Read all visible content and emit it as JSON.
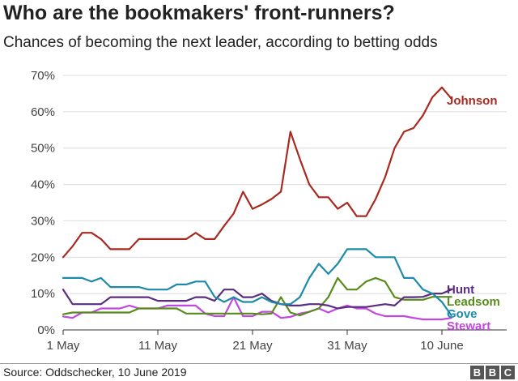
{
  "header": {
    "title": "Who are the bookmakers' front-runners?",
    "subtitle": "Chances of becoming the next leader, according to betting odds"
  },
  "footer": {
    "source": "Source: Oddschecker, 10 June 2019",
    "logo_letters": [
      "B",
      "B",
      "C"
    ]
  },
  "chart_data": {
    "type": "line",
    "title": "Who are the bookmakers' front-runners?",
    "subtitle": "Chances of becoming the next leader, according to betting odds",
    "xlabel": "",
    "ylabel": "",
    "x_range": [
      "2019-05-01",
      "2019-06-10"
    ],
    "x_ticks": [
      {
        "date": "2019-05-01",
        "label": "1 May"
      },
      {
        "date": "2019-05-11",
        "label": "11 May"
      },
      {
        "date": "2019-05-21",
        "label": "21 May"
      },
      {
        "date": "2019-05-31",
        "label": "31 May"
      },
      {
        "date": "2019-06-10",
        "label": "10 June"
      }
    ],
    "y_ticks": [
      0,
      10,
      20,
      30,
      40,
      50,
      60,
      70
    ],
    "y_tick_suffix": "%",
    "ylim": [
      0,
      70
    ],
    "grid": true,
    "legend": "direct labels at line ends (right)",
    "series": [
      {
        "name": "Johnson",
        "color": "#a82a1e",
        "points": [
          [
            "2019-05-01",
            20
          ],
          [
            "2019-05-02",
            23
          ],
          [
            "2019-05-03",
            26.7
          ],
          [
            "2019-05-04",
            26.7
          ],
          [
            "2019-05-05",
            25
          ],
          [
            "2019-05-06",
            22.2
          ],
          [
            "2019-05-07",
            22.2
          ],
          [
            "2019-05-08",
            22.2
          ],
          [
            "2019-05-09",
            25
          ],
          [
            "2019-05-10",
            25
          ],
          [
            "2019-05-11",
            25
          ],
          [
            "2019-05-12",
            25
          ],
          [
            "2019-05-13",
            25
          ],
          [
            "2019-05-14",
            25
          ],
          [
            "2019-05-15",
            26.7
          ],
          [
            "2019-05-16",
            25
          ],
          [
            "2019-05-17",
            25
          ],
          [
            "2019-05-18",
            28.6
          ],
          [
            "2019-05-19",
            32
          ],
          [
            "2019-05-20",
            38
          ],
          [
            "2019-05-21",
            33.3
          ],
          [
            "2019-05-22",
            34.5
          ],
          [
            "2019-05-23",
            36
          ],
          [
            "2019-05-24",
            38
          ],
          [
            "2019-05-25",
            54.5
          ],
          [
            "2019-05-26",
            47
          ],
          [
            "2019-05-27",
            40
          ],
          [
            "2019-05-28",
            36.5
          ],
          [
            "2019-05-29",
            36.5
          ],
          [
            "2019-05-30",
            33.3
          ],
          [
            "2019-05-31",
            35
          ],
          [
            "2019-06-01",
            31.3
          ],
          [
            "2019-06-02",
            31.3
          ],
          [
            "2019-06-03",
            36
          ],
          [
            "2019-06-04",
            42
          ],
          [
            "2019-06-05",
            50
          ],
          [
            "2019-06-06",
            54.5
          ],
          [
            "2019-06-07",
            55.5
          ],
          [
            "2019-06-08",
            59
          ],
          [
            "2019-06-09",
            64
          ],
          [
            "2019-06-10",
            66.7
          ],
          [
            "2019-06-11",
            63.6
          ]
        ]
      },
      {
        "name": "Hunt",
        "color": "#5a2d81",
        "points": [
          [
            "2019-05-01",
            11.1
          ],
          [
            "2019-05-02",
            7.1
          ],
          [
            "2019-05-03",
            7.1
          ],
          [
            "2019-05-04",
            7.1
          ],
          [
            "2019-05-05",
            7.1
          ],
          [
            "2019-05-06",
            9
          ],
          [
            "2019-05-07",
            9
          ],
          [
            "2019-05-08",
            9
          ],
          [
            "2019-05-09",
            9
          ],
          [
            "2019-05-10",
            9
          ],
          [
            "2019-05-11",
            8
          ],
          [
            "2019-05-12",
            8
          ],
          [
            "2019-05-13",
            8
          ],
          [
            "2019-05-14",
            8
          ],
          [
            "2019-05-15",
            9
          ],
          [
            "2019-05-16",
            9
          ],
          [
            "2019-05-17",
            8
          ],
          [
            "2019-05-18",
            11.1
          ],
          [
            "2019-05-19",
            11.1
          ],
          [
            "2019-05-20",
            9
          ],
          [
            "2019-05-21",
            9
          ],
          [
            "2019-05-22",
            10
          ],
          [
            "2019-05-23",
            8
          ],
          [
            "2019-05-24",
            7.1
          ],
          [
            "2019-05-25",
            6.7
          ],
          [
            "2019-05-26",
            6.7
          ],
          [
            "2019-05-27",
            7.1
          ],
          [
            "2019-05-28",
            7.1
          ],
          [
            "2019-05-29",
            6.7
          ],
          [
            "2019-05-30",
            5.9
          ],
          [
            "2019-05-31",
            6.3
          ],
          [
            "2019-06-01",
            6.3
          ],
          [
            "2019-06-02",
            6.3
          ],
          [
            "2019-06-03",
            6.7
          ],
          [
            "2019-06-04",
            7.1
          ],
          [
            "2019-06-05",
            6.7
          ],
          [
            "2019-06-06",
            9
          ],
          [
            "2019-06-07",
            9
          ],
          [
            "2019-06-08",
            9.1
          ],
          [
            "2019-06-09",
            10
          ],
          [
            "2019-06-10",
            10
          ],
          [
            "2019-06-11",
            11.1
          ]
        ]
      },
      {
        "name": "Leadsom",
        "color": "#588c1a",
        "points": [
          [
            "2019-05-01",
            4.3
          ],
          [
            "2019-05-02",
            4.8
          ],
          [
            "2019-05-03",
            4.8
          ],
          [
            "2019-05-04",
            4.8
          ],
          [
            "2019-05-05",
            4.8
          ],
          [
            "2019-05-06",
            4.8
          ],
          [
            "2019-05-07",
            4.8
          ],
          [
            "2019-05-08",
            4.8
          ],
          [
            "2019-05-09",
            5.9
          ],
          [
            "2019-05-10",
            5.9
          ],
          [
            "2019-05-11",
            5.9
          ],
          [
            "2019-05-12",
            5.9
          ],
          [
            "2019-05-13",
            5.9
          ],
          [
            "2019-05-14",
            4.5
          ],
          [
            "2019-05-15",
            4.5
          ],
          [
            "2019-05-16",
            4.5
          ],
          [
            "2019-05-17",
            4.5
          ],
          [
            "2019-05-18",
            4.5
          ],
          [
            "2019-05-19",
            4.5
          ],
          [
            "2019-05-20",
            4.5
          ],
          [
            "2019-05-21",
            4.5
          ],
          [
            "2019-05-22",
            4.3
          ],
          [
            "2019-05-23",
            4.5
          ],
          [
            "2019-05-24",
            9
          ],
          [
            "2019-05-25",
            4.8
          ],
          [
            "2019-05-26",
            4
          ],
          [
            "2019-05-27",
            5
          ],
          [
            "2019-05-28",
            5.9
          ],
          [
            "2019-05-29",
            9
          ],
          [
            "2019-05-30",
            14.3
          ],
          [
            "2019-05-31",
            11.1
          ],
          [
            "2019-06-01",
            11.1
          ],
          [
            "2019-06-02",
            13.3
          ],
          [
            "2019-06-03",
            14.3
          ],
          [
            "2019-06-04",
            13.3
          ],
          [
            "2019-06-05",
            9
          ],
          [
            "2019-06-06",
            8.3
          ],
          [
            "2019-06-07",
            8.3
          ],
          [
            "2019-06-08",
            8.3
          ],
          [
            "2019-06-09",
            9.1
          ],
          [
            "2019-06-10",
            9.1
          ],
          [
            "2019-06-11",
            9.1
          ]
        ]
      },
      {
        "name": "Gove",
        "color": "#1d8aaa",
        "points": [
          [
            "2019-05-01",
            14.3
          ],
          [
            "2019-05-02",
            14.3
          ],
          [
            "2019-05-03",
            14.3
          ],
          [
            "2019-05-04",
            13.3
          ],
          [
            "2019-05-05",
            14.3
          ],
          [
            "2019-05-06",
            11.8
          ],
          [
            "2019-05-07",
            11.8
          ],
          [
            "2019-05-08",
            11.8
          ],
          [
            "2019-05-09",
            11.8
          ],
          [
            "2019-05-10",
            11.1
          ],
          [
            "2019-05-11",
            11.1
          ],
          [
            "2019-05-12",
            11.1
          ],
          [
            "2019-05-13",
            12.5
          ],
          [
            "2019-05-14",
            12.5
          ],
          [
            "2019-05-15",
            13.3
          ],
          [
            "2019-05-16",
            13.3
          ],
          [
            "2019-05-17",
            9.1
          ],
          [
            "2019-05-18",
            7.7
          ],
          [
            "2019-05-19",
            9
          ],
          [
            "2019-05-20",
            7.7
          ],
          [
            "2019-05-21",
            7.7
          ],
          [
            "2019-05-22",
            9
          ],
          [
            "2019-05-23",
            7.7
          ],
          [
            "2019-05-24",
            7.1
          ],
          [
            "2019-05-25",
            7.1
          ],
          [
            "2019-05-26",
            9
          ],
          [
            "2019-05-27",
            14.3
          ],
          [
            "2019-05-28",
            18.2
          ],
          [
            "2019-05-29",
            15.4
          ],
          [
            "2019-05-30",
            18.2
          ],
          [
            "2019-05-31",
            22.2
          ],
          [
            "2019-06-01",
            22.2
          ],
          [
            "2019-06-02",
            22.2
          ],
          [
            "2019-06-03",
            20
          ],
          [
            "2019-06-04",
            20
          ],
          [
            "2019-06-05",
            20
          ],
          [
            "2019-06-06",
            14.3
          ],
          [
            "2019-06-07",
            14.3
          ],
          [
            "2019-06-08",
            11.1
          ],
          [
            "2019-06-09",
            10
          ],
          [
            "2019-06-10",
            7.7
          ],
          [
            "2019-06-11",
            4
          ]
        ]
      },
      {
        "name": "Stewart",
        "color": "#c147e0",
        "points": [
          [
            "2019-05-01",
            3.7
          ],
          [
            "2019-05-02",
            3.3
          ],
          [
            "2019-05-03",
            4.8
          ],
          [
            "2019-05-04",
            4.8
          ],
          [
            "2019-05-05",
            5.9
          ],
          [
            "2019-05-06",
            5.9
          ],
          [
            "2019-05-07",
            5.9
          ],
          [
            "2019-05-08",
            6.7
          ],
          [
            "2019-05-09",
            5.9
          ],
          [
            "2019-05-10",
            5.9
          ],
          [
            "2019-05-11",
            5.9
          ],
          [
            "2019-05-12",
            6.7
          ],
          [
            "2019-05-13",
            6.7
          ],
          [
            "2019-05-14",
            6.7
          ],
          [
            "2019-05-15",
            6.7
          ],
          [
            "2019-05-16",
            4.5
          ],
          [
            "2019-05-17",
            3.8
          ],
          [
            "2019-05-18",
            3.8
          ],
          [
            "2019-05-19",
            9
          ],
          [
            "2019-05-20",
            3.8
          ],
          [
            "2019-05-21",
            3.8
          ],
          [
            "2019-05-22",
            5
          ],
          [
            "2019-05-23",
            5
          ],
          [
            "2019-05-24",
            3.3
          ],
          [
            "2019-05-25",
            3.6
          ],
          [
            "2019-05-26",
            4.5
          ],
          [
            "2019-05-27",
            5
          ],
          [
            "2019-05-28",
            5.9
          ],
          [
            "2019-05-29",
            4.8
          ],
          [
            "2019-05-30",
            5.9
          ],
          [
            "2019-05-31",
            6.7
          ],
          [
            "2019-06-01",
            5.9
          ],
          [
            "2019-06-02",
            5.9
          ],
          [
            "2019-06-03",
            4.5
          ],
          [
            "2019-06-04",
            3.8
          ],
          [
            "2019-06-05",
            3.8
          ],
          [
            "2019-06-06",
            3.8
          ],
          [
            "2019-06-07",
            3.3
          ],
          [
            "2019-06-08",
            2.9
          ],
          [
            "2019-06-09",
            2.9
          ],
          [
            "2019-06-10",
            2.9
          ],
          [
            "2019-06-11",
            3.3
          ]
        ]
      }
    ]
  }
}
